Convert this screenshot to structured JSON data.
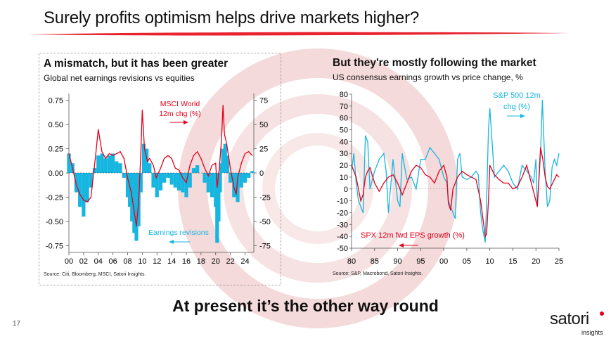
{
  "slide": {
    "title": "Surely profits optimism helps drive markets higher?",
    "conclusion": "At present it’s the other way round",
    "page_number": "17",
    "logo_text": "satori",
    "logo_sub": "insights"
  },
  "colors": {
    "red": "#e2001a",
    "cyan": "#17b6e0",
    "rule": "#e8222e",
    "swirl": "#f2d6d6"
  },
  "chart_data": [
    {
      "type": "bar+line",
      "title": "A mismatch, but it has been greater",
      "subtitle": "Global net earnings revisions vs equities",
      "source": "Source: Citi, Bloomberg, MSCI, Satori Insights.",
      "x_ticks": [
        "00",
        "02",
        "04",
        "06",
        "08",
        "10",
        "12",
        "14",
        "16",
        "18",
        "20",
        "22",
        "24"
      ],
      "xlim": [
        2000,
        2025.2
      ],
      "left_axis": {
        "ticks": [
          "0.75",
          "0.50",
          "0.25",
          "0.00",
          "-0.25",
          "-0.50",
          "-0.75"
        ],
        "values": [
          0.75,
          0.5,
          0.25,
          0,
          -0.25,
          -0.5,
          -0.75
        ],
        "ylim": [
          -0.82,
          0.82
        ]
      },
      "right_axis": {
        "ticks": [
          "75",
          "50",
          "25",
          "0",
          "-25",
          "-50",
          "-75"
        ],
        "values": [
          75,
          50,
          25,
          0,
          -25,
          -50,
          -75
        ],
        "ylim": [
          -82,
          82
        ]
      },
      "series": [
        {
          "name": "Earnings revisions",
          "label": "Earnings revisions",
          "axis": "left",
          "style": "bars",
          "color": "#17b6e0",
          "x": [
            2000,
            2000.5,
            2001,
            2001.5,
            2002,
            2002.5,
            2003,
            2003.5,
            2004,
            2004.5,
            2005,
            2005.5,
            2006,
            2006.5,
            2007,
            2007.5,
            2008,
            2008.3,
            2008.6,
            2008.9,
            2009.2,
            2009.5,
            2009.8,
            2010.2,
            2010.6,
            2011,
            2011.5,
            2012,
            2012.5,
            2013,
            2013.5,
            2014,
            2014.5,
            2015,
            2015.5,
            2016,
            2016.5,
            2017,
            2017.5,
            2018,
            2018.5,
            2019,
            2019.5,
            2020,
            2020.2,
            2020.4,
            2020.6,
            2020.8,
            2021,
            2021.3,
            2021.6,
            2022,
            2022.5,
            2023,
            2023.5,
            2024,
            2024.5,
            2025
          ],
          "values": [
            0.2,
            0.1,
            -0.2,
            -0.35,
            -0.45,
            -0.3,
            -0.15,
            0.05,
            0.18,
            0.2,
            0.15,
            0.18,
            0.2,
            0.12,
            0.1,
            -0.05,
            -0.25,
            -0.35,
            -0.5,
            -0.62,
            -0.7,
            -0.55,
            -0.2,
            0.3,
            0.25,
            0.1,
            -0.15,
            -0.25,
            -0.18,
            -0.1,
            -0.05,
            -0.12,
            -0.15,
            -0.18,
            -0.2,
            -0.25,
            -0.15,
            0.05,
            0.08,
            0.0,
            -0.1,
            -0.2,
            -0.25,
            -0.35,
            -0.72,
            -0.5,
            -0.2,
            0.1,
            0.25,
            0.3,
            0.18,
            -0.1,
            -0.25,
            -0.3,
            -0.15,
            -0.1,
            -0.05,
            0.02
          ]
        },
        {
          "name": "MSCI World 12m chg (%)",
          "label": "MSCI World\n12m chg (%)",
          "axis": "right",
          "style": "line",
          "color": "#e2001a",
          "x": [
            2000,
            2000.5,
            2001,
            2001.5,
            2002,
            2002.5,
            2003,
            2003.3,
            2003.6,
            2004,
            2004.5,
            2005,
            2005.5,
            2006,
            2006.5,
            2007,
            2007.5,
            2008,
            2008.5,
            2008.9,
            2009.2,
            2009.5,
            2009.8,
            2010,
            2010.3,
            2010.7,
            2011,
            2011.5,
            2011.9,
            2012.5,
            2013,
            2013.5,
            2014,
            2014.5,
            2015,
            2015.5,
            2016,
            2016.5,
            2017,
            2017.5,
            2018,
            2018.5,
            2019,
            2019.5,
            2020,
            2020.2,
            2020.5,
            2020.8,
            2021,
            2021.2,
            2021.5,
            2022,
            2022.5,
            2022.8,
            2023,
            2023.5,
            2024,
            2024.5,
            2025
          ],
          "values": [
            20,
            5,
            -12,
            -22,
            -28,
            -30,
            -25,
            -5,
            15,
            45,
            22,
            15,
            20,
            18,
            20,
            22,
            15,
            -5,
            -20,
            -40,
            -55,
            -30,
            20,
            65,
            25,
            12,
            15,
            8,
            -5,
            5,
            15,
            18,
            15,
            5,
            3,
            -5,
            -10,
            8,
            18,
            22,
            15,
            5,
            -3,
            8,
            10,
            -15,
            5,
            35,
            70,
            40,
            30,
            5,
            -15,
            -22,
            -5,
            10,
            20,
            22,
            18
          ]
        }
      ]
    },
    {
      "type": "line",
      "title": "But they're mostly following the market",
      "subtitle": "US consensus earnings growth vs price change, %",
      "source": "Source: S&P, Macrobond, Satori Insights.",
      "x_ticks": [
        "80",
        "85",
        "90",
        "95",
        "00",
        "05",
        "10",
        "15",
        "20",
        "25"
      ],
      "xlim": [
        1980,
        2025
      ],
      "ylim": [
        -50,
        80
      ],
      "y_ticks": [
        "80",
        "70",
        "60",
        "50",
        "40",
        "30",
        "20",
        "10",
        "0",
        "-10",
        "-20",
        "-30",
        "-40",
        "-50"
      ],
      "series": [
        {
          "name": "S&P 500 12m chg (%)",
          "label": "S&P 500 12m\nchg (%)",
          "color": "#17b6e0",
          "x": [
            1980,
            1980.5,
            1981,
            1981.5,
            1982,
            1982.5,
            1983,
            1983.5,
            1984,
            1985,
            1986,
            1987,
            1987.5,
            1988,
            1989,
            1990,
            1990.5,
            1991,
            1992,
            1993,
            1994,
            1995,
            1996,
            1997,
            1998,
            1999,
            2000,
            2000.7,
            2001,
            2002,
            2002.5,
            2003,
            2003.5,
            2004,
            2005,
            2006,
            2007,
            2007.5,
            2008,
            2008.5,
            2009,
            2009.3,
            2009.7,
            2010,
            2011,
            2012,
            2013,
            2014,
            2015,
            2016,
            2017,
            2018,
            2019,
            2019.5,
            2020,
            2020.3,
            2020.7,
            2021,
            2021.4,
            2022,
            2022.5,
            2023,
            2023.5,
            2024,
            2024.5,
            2025
          ],
          "values": [
            15,
            30,
            5,
            -10,
            -15,
            -20,
            45,
            40,
            0,
            15,
            25,
            30,
            15,
            -20,
            25,
            -10,
            -15,
            30,
            8,
            10,
            0,
            25,
            25,
            35,
            30,
            25,
            10,
            5,
            -10,
            -20,
            -25,
            25,
            30,
            10,
            8,
            10,
            15,
            12,
            -20,
            -35,
            -45,
            -10,
            50,
            68,
            10,
            15,
            20,
            15,
            5,
            0,
            20,
            15,
            10,
            5,
            25,
            -15,
            10,
            30,
            75,
            15,
            -15,
            -10,
            18,
            25,
            20,
            30
          ]
        },
        {
          "name": "SPX 12m fwd EPS growth (%)",
          "label": "SPX 12m fwd EPS growth (%)",
          "color": "#e2001a",
          "x": [
            1980,
            1980.5,
            1981,
            1981.5,
            1982,
            1982.5,
            1983,
            1983.5,
            1984,
            1985,
            1986,
            1987,
            1988,
            1989,
            1990,
            1990.5,
            1991,
            1992,
            1993,
            1994,
            1995,
            1996,
            1997,
            1998,
            1999,
            2000,
            2000.7,
            2001,
            2001.5,
            2002,
            2003,
            2004,
            2005,
            2006,
            2007,
            2008,
            2008.5,
            2009,
            2009.3,
            2009.7,
            2010,
            2011,
            2012,
            2013,
            2014,
            2015,
            2016,
            2017,
            2018,
            2019,
            2020,
            2020.3,
            2020.6,
            2021,
            2021.5,
            2022,
            2022.5,
            2023,
            2024,
            2024.5,
            2025
          ],
          "values": [
            20,
            15,
            10,
            0,
            -10,
            -5,
            10,
            15,
            18,
            5,
            -2,
            5,
            10,
            12,
            5,
            0,
            -5,
            5,
            15,
            20,
            18,
            12,
            10,
            5,
            15,
            20,
            10,
            -12,
            -18,
            0,
            10,
            15,
            12,
            10,
            8,
            -10,
            -25,
            -40,
            -38,
            -10,
            20,
            12,
            8,
            5,
            5,
            0,
            2,
            10,
            20,
            5,
            -10,
            -15,
            5,
            35,
            25,
            10,
            2,
            0,
            8,
            12,
            10
          ]
        }
      ]
    }
  ]
}
